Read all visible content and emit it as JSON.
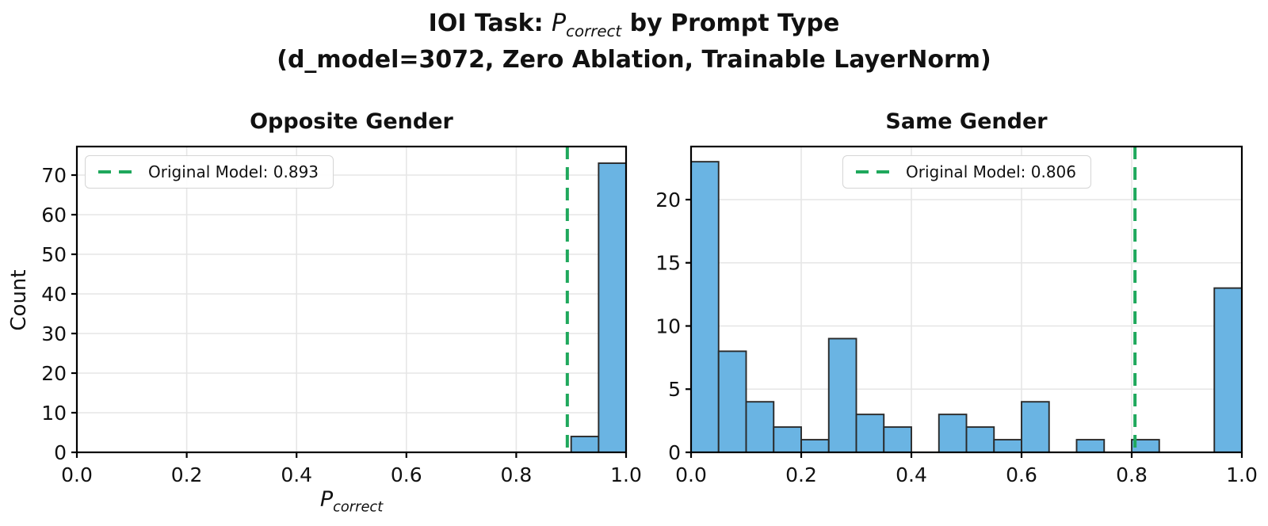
{
  "figure_title": {
    "prefix": "IOI Task: ",
    "math_base": "P",
    "math_sub": "correct",
    "suffix": " by Prompt Type",
    "line2": "(d_model=3072, Zero Ablation, Trainable LayerNorm)"
  },
  "colors": {
    "bar_fill": "#6AB4E3",
    "bar_edge": "#2a2a2a",
    "ref_line": "#1FA85C",
    "grid": "#e6e6e6",
    "axis": "#000000",
    "text": "#111111"
  },
  "chart_data": [
    {
      "type": "bar",
      "subtype": "histogram",
      "title": "Opposite Gender",
      "ylabel": "Count",
      "xlabel_base": "P",
      "xlabel_sub": "correct",
      "xlim": [
        0.0,
        1.0
      ],
      "ylim": [
        0,
        77.2
      ],
      "bin_start": 0.0,
      "bin_width": 0.05,
      "counts": [
        0,
        0,
        0,
        0,
        0,
        0,
        0,
        0,
        0,
        0,
        0,
        0,
        0,
        0,
        0,
        0,
        0,
        0,
        4,
        73
      ],
      "xticks": [
        "0.0",
        "0.2",
        "0.4",
        "0.6",
        "0.8",
        "1.0"
      ],
      "yticks": [
        0,
        10,
        20,
        30,
        40,
        50,
        60,
        70
      ],
      "grid": true,
      "ref_line": {
        "value": 0.893,
        "label": "Original Model: 0.893"
      },
      "legend_position": "upper left"
    },
    {
      "type": "bar",
      "subtype": "histogram",
      "title": "Same Gender",
      "ylabel": "",
      "xlim": [
        0.0,
        1.0
      ],
      "ylim": [
        0,
        24.2
      ],
      "bin_start": 0.0,
      "bin_width": 0.05,
      "counts": [
        23,
        8,
        4,
        2,
        1,
        9,
        3,
        2,
        0,
        3,
        2,
        1,
        4,
        0,
        1,
        0,
        1,
        0,
        0,
        13
      ],
      "xticks": [
        "0.0",
        "0.2",
        "0.4",
        "0.6",
        "0.8",
        "1.0"
      ],
      "yticks": [
        0,
        5,
        10,
        15,
        20
      ],
      "grid": true,
      "ref_line": {
        "value": 0.806,
        "label": "Original Model: 0.806"
      },
      "legend_position": "upper center"
    }
  ]
}
